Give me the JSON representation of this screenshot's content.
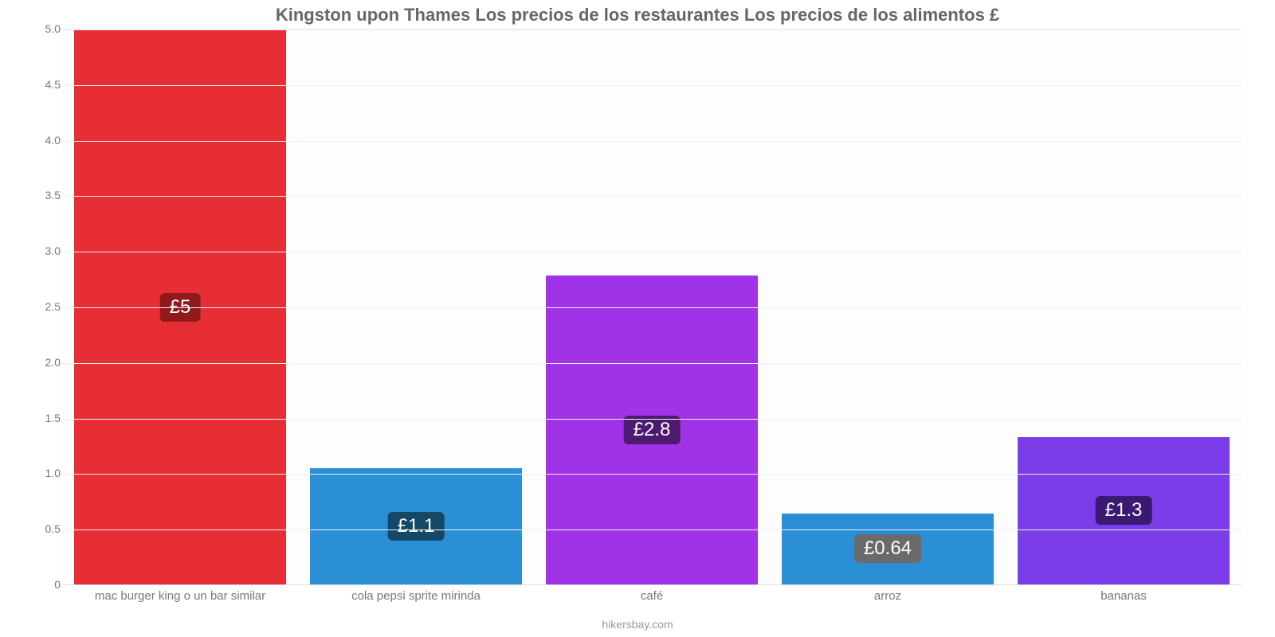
{
  "chart": {
    "type": "bar",
    "title": "Kingston upon Thames Los precios de los restaurantes Los precios de los alimentos £",
    "title_fontsize": 22,
    "title_color": "#666666",
    "source": "hikersbay.com",
    "source_fontsize": 14,
    "source_color": "#999999",
    "background_color": "#fdfdfd",
    "grid_color": "#f0f0f0",
    "axis_label_color": "#777777",
    "ylim": [
      0,
      5.0
    ],
    "ytick_step": 0.5,
    "yticks": [
      "0",
      "0.5",
      "1.0",
      "1.5",
      "2.0",
      "2.5",
      "3.0",
      "3.5",
      "4.0",
      "4.5",
      "5.0"
    ],
    "tick_fontsize": 14,
    "xlabel_fontsize": 15,
    "bar_width_pct": 90,
    "value_badge_fontsize": 24,
    "value_badge_radius": 6,
    "categories": [
      "mac burger king o un bar similar",
      "cola pepsi sprite mirinda",
      "café",
      "arroz",
      "bananas"
    ],
    "values": [
      5.0,
      1.05,
      2.78,
      0.64,
      1.33
    ],
    "value_labels": [
      "£5",
      "£1.1",
      "£2.8",
      "£0.64",
      "£1.3"
    ],
    "bar_colors": [
      "#e82e35",
      "#2b8fd6",
      "#a033e8",
      "#2b8fd6",
      "#7a3de8"
    ],
    "badge_colors": [
      "#8f1a1a",
      "#144866",
      "#4d1a70",
      "#6a6a6a",
      "#3a1a70"
    ]
  }
}
